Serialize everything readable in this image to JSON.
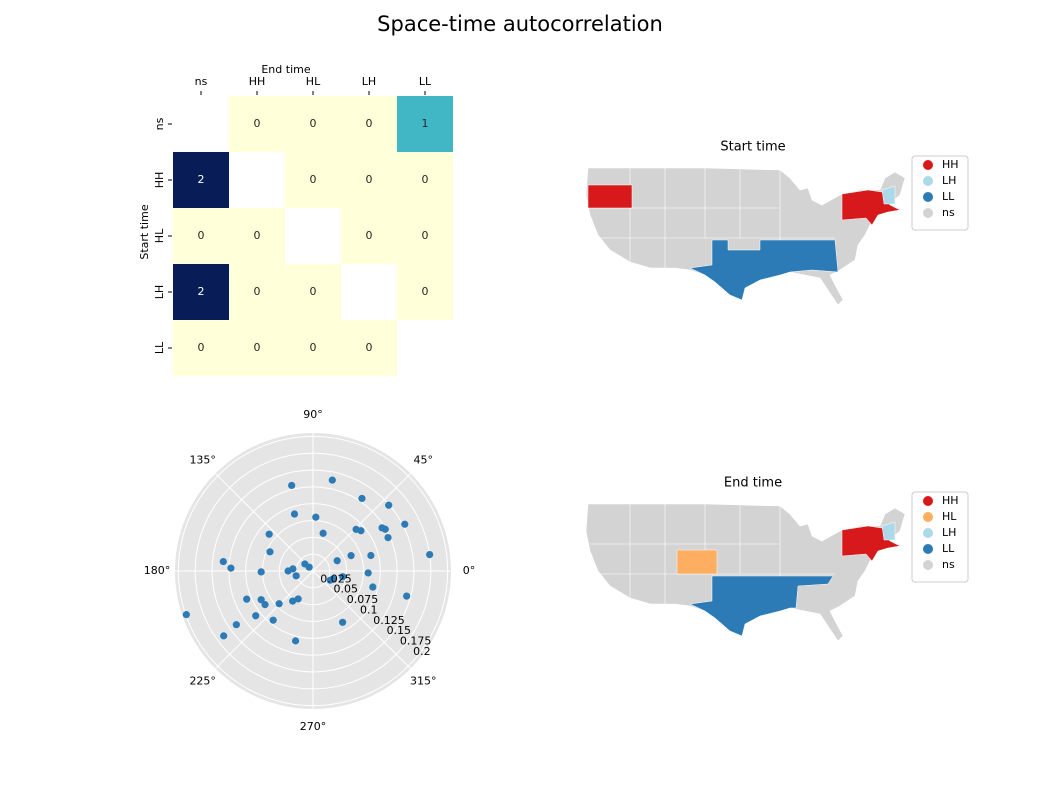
{
  "title": "Space-time autocorrelation",
  "chart_data": [
    {
      "type": "heatmap",
      "x_label": "End time",
      "y_label": "Start time",
      "x_categories": [
        "ns",
        "HH",
        "HL",
        "LH",
        "LL"
      ],
      "y_categories": [
        "ns",
        "HH",
        "HL",
        "LH",
        "LL"
      ],
      "values": [
        [
          null,
          0,
          0,
          0,
          1
        ],
        [
          2,
          null,
          0,
          0,
          0
        ],
        [
          0,
          0,
          null,
          0,
          0
        ],
        [
          2,
          0,
          0,
          null,
          0
        ],
        [
          0,
          0,
          0,
          0,
          null
        ]
      ],
      "color_scale": [
        "#ffffd9",
        "#41b6c4",
        "#081d58"
      ]
    },
    {
      "type": "polar_scatter",
      "color": "#2c7bb6",
      "theta": [
        78,
        104,
        56,
        41,
        27,
        8,
        108,
        87,
        44,
        40,
        32,
        30,
        24,
        140,
        75,
        156,
        174,
        178,
        181,
        139,
        135,
        180,
        174,
        196,
        23,
        22,
        15,
        358,
        345,
        345,
        349,
        332,
        338,
        199,
        216,
        215,
        203,
        218,
        209,
        215,
        231,
        224,
        236,
        242,
        256,
        300
      ],
      "r": [
        0.138,
        0.131,
        0.13,
        0.149,
        0.153,
        0.175,
        0.089,
        0.08,
        0.089,
        0.093,
        0.121,
        0.124,
        0.122,
        0.085,
        0.058,
        0.07,
        0.134,
        0.122,
        0.077,
        0.016,
        0.008,
        0.037,
        0.03,
        0.026,
        0.039,
        0.061,
        0.089,
        0.082,
        0.092,
        0.144,
        0.045,
        0.029,
        0.032,
        0.199,
        0.164,
        0.139,
        0.107,
        0.108,
        0.088,
        0.087,
        0.094,
        0.07,
        0.054,
        0.047,
        0.107,
        0.088
      ],
      "rlim": [
        0,
        0.205
      ],
      "rticks": [
        0.025,
        0.05,
        0.075,
        0.1,
        0.125,
        0.15,
        0.175,
        0.2
      ],
      "theta_ticks": [
        {
          "value": 0,
          "label": "0°"
        },
        {
          "value": 45,
          "label": "45°"
        },
        {
          "value": 90,
          "label": "90°"
        },
        {
          "value": 135,
          "label": "135°"
        },
        {
          "value": 180,
          "label": "180°"
        },
        {
          "value": 225,
          "label": "225°"
        },
        {
          "value": 270,
          "label": "270°"
        },
        {
          "value": 315,
          "label": "315°"
        }
      ]
    },
    {
      "type": "map",
      "title": "Start time",
      "series": [
        {
          "name": "HH",
          "color": "#d7191c"
        },
        {
          "name": "LH",
          "color": "#abd9e9"
        },
        {
          "name": "LL",
          "color": "#2c7bb6"
        },
        {
          "name": "ns",
          "color": "#d3d3d3"
        }
      ]
    },
    {
      "type": "map",
      "title": "End time",
      "series": [
        {
          "name": "HH",
          "color": "#d7191c"
        },
        {
          "name": "HL",
          "color": "#fdae61"
        },
        {
          "name": "LH",
          "color": "#abd9e9"
        },
        {
          "name": "LL",
          "color": "#2c7bb6"
        },
        {
          "name": "ns",
          "color": "#d3d3d3"
        }
      ]
    }
  ]
}
